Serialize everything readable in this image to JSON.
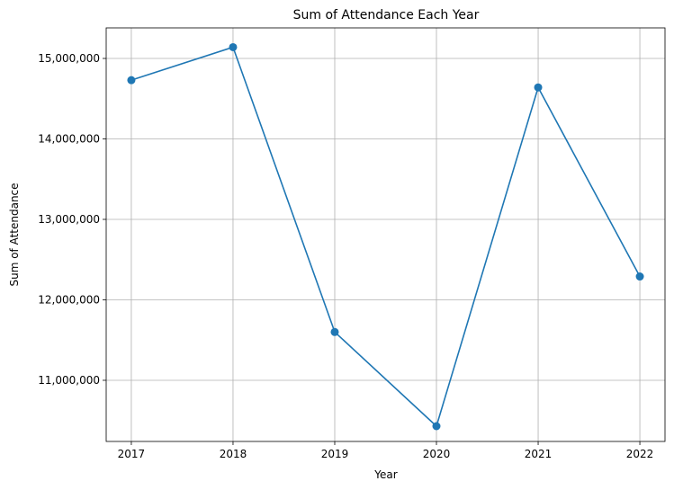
{
  "chart_data": {
    "type": "line",
    "title": "Sum of Attendance Each Year",
    "xlabel": "Year",
    "ylabel": "Sum of Attendance",
    "categories": [
      "2017",
      "2018",
      "2019",
      "2020",
      "2021",
      "2022"
    ],
    "series": [
      {
        "values": [
          14730000,
          15140000,
          11600000,
          10430000,
          14640000,
          12290000
        ],
        "color": "#1f77b4",
        "marker": "circle"
      }
    ],
    "ylim": [
      10240000,
      15380000
    ],
    "yticks": [
      11000000,
      12000000,
      13000000,
      14000000,
      15000000
    ],
    "ytick_labels": [
      "11,000,000",
      "12,000,000",
      "13,000,000",
      "14,000,000",
      "15,000,000"
    ],
    "grid": true,
    "legend": "none"
  }
}
